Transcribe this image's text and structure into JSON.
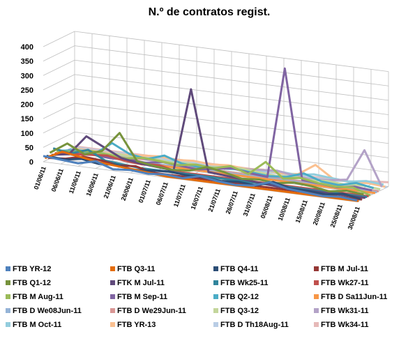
{
  "chart_data": {
    "type": "line3d",
    "title": "N.º de contratos regist.",
    "categories": [
      "01/06/11",
      "06/06/11",
      "11/06/11",
      "16/06/11",
      "21/06/11",
      "26/06/11",
      "01/07/11",
      "06/07/11",
      "11/07/11",
      "16/07/11",
      "21/07/11",
      "26/07/11",
      "31/07/11",
      "05/08/11",
      "10/08/11",
      "15/08/11",
      "20/08/11",
      "25/08/11",
      "30/08/11"
    ],
    "ylim": [
      0,
      400
    ],
    "yticks": [
      0,
      50,
      100,
      150,
      200,
      250,
      300,
      350,
      400
    ],
    "grid": true,
    "series": [
      {
        "name": "FTB YR-12",
        "color": "#4F81BD",
        "values": [
          20,
          15,
          10,
          25,
          5,
          10,
          5,
          10,
          5,
          20,
          10,
          5,
          10,
          30,
          15,
          10,
          5,
          10,
          5
        ]
      },
      {
        "name": "FTB Q3-11",
        "color": "#E46C0A",
        "values": [
          10,
          40,
          30,
          20,
          15,
          10,
          5,
          0,
          0,
          0,
          0,
          0,
          0,
          0,
          0,
          0,
          0,
          0,
          0
        ]
      },
      {
        "name": "FTB Q4-11",
        "color": "#2C4D75",
        "values": [
          15,
          10,
          20,
          10,
          15,
          5,
          10,
          15,
          10,
          10,
          5,
          10,
          5,
          25,
          10,
          10,
          5,
          15,
          5
        ]
      },
      {
        "name": "FTB M Jul-11",
        "color": "#953735",
        "values": [
          5,
          10,
          25,
          20,
          10,
          15,
          0,
          0,
          0,
          0,
          0,
          0,
          0,
          0,
          0,
          0,
          0,
          0,
          0
        ]
      },
      {
        "name": "FTB Q1-12",
        "color": "#77933C",
        "values": [
          20,
          60,
          30,
          50,
          120,
          30,
          20,
          15,
          20,
          40,
          30,
          15,
          20,
          15,
          25,
          20,
          10,
          20,
          15
        ]
      },
      {
        "name": "FTK M Jul-11",
        "color": "#604A7B",
        "values": [
          10,
          20,
          90,
          60,
          30,
          20,
          15,
          10,
          300,
          20,
          15,
          10,
          5,
          0,
          0,
          0,
          0,
          0,
          0
        ]
      },
      {
        "name": "FTB Wk25-11",
        "color": "#31859C",
        "values": [
          30,
          20,
          40,
          10,
          5,
          0,
          0,
          0,
          0,
          0,
          0,
          0,
          0,
          0,
          0,
          0,
          0,
          0,
          0
        ]
      },
      {
        "name": "FTB Wk27-11",
        "color": "#C0504D",
        "values": [
          10,
          15,
          20,
          25,
          15,
          10,
          15,
          0,
          0,
          0,
          0,
          0,
          0,
          0,
          0,
          0,
          0,
          0,
          0
        ]
      },
      {
        "name": "FTB M Aug-11",
        "color": "#9BBB59",
        "values": [
          15,
          20,
          30,
          25,
          20,
          30,
          25,
          20,
          30,
          25,
          40,
          20,
          70,
          20,
          30,
          20,
          15,
          20,
          0
        ]
      },
      {
        "name": "FTB M Sep-11",
        "color": "#8064A2",
        "values": [
          5,
          10,
          15,
          10,
          15,
          10,
          20,
          15,
          10,
          20,
          30,
          20,
          15,
          400,
          20,
          15,
          10,
          20,
          15
        ]
      },
      {
        "name": "FTB Q2-12",
        "color": "#4BACC6",
        "values": [
          10,
          20,
          15,
          60,
          30,
          20,
          40,
          20,
          15,
          20,
          25,
          20,
          15,
          20,
          40,
          20,
          15,
          30,
          20
        ]
      },
      {
        "name": "FTB D Sa11Jun-11",
        "color": "#F79646",
        "values": [
          0,
          5,
          10,
          5,
          0,
          0,
          0,
          0,
          0,
          0,
          0,
          0,
          0,
          0,
          0,
          0,
          0,
          0,
          0
        ]
      },
      {
        "name": "FTB D We08Jun-11",
        "color": "#95B3D7",
        "values": [
          0,
          5,
          10,
          0,
          0,
          0,
          0,
          0,
          0,
          0,
          0,
          0,
          0,
          0,
          0,
          0,
          0,
          0,
          0
        ]
      },
      {
        "name": "FTB D We29Jun-11",
        "color": "#D99694",
        "values": [
          0,
          0,
          0,
          0,
          5,
          10,
          5,
          0,
          0,
          0,
          0,
          0,
          0,
          0,
          0,
          0,
          0,
          0,
          0
        ]
      },
      {
        "name": "FTB Q3-12",
        "color": "#C3D69B",
        "values": [
          0,
          5,
          5,
          10,
          5,
          10,
          5,
          10,
          5,
          10,
          15,
          10,
          5,
          10,
          5,
          10,
          5,
          10,
          5
        ]
      },
      {
        "name": "FTB Wk31-11",
        "color": "#B3A2C7",
        "values": [
          0,
          0,
          0,
          0,
          0,
          0,
          0,
          0,
          0,
          5,
          10,
          15,
          20,
          10,
          5,
          10,
          20,
          130,
          10
        ]
      },
      {
        "name": "FTB M Oct-11",
        "color": "#93CDDD",
        "values": [
          0,
          0,
          0,
          0,
          0,
          0,
          0,
          0,
          0,
          0,
          5,
          10,
          15,
          10,
          20,
          15,
          10,
          20,
          15
        ]
      },
      {
        "name": "FTB YR-13",
        "color": "#FAC090",
        "values": [
          0,
          0,
          0,
          0,
          5,
          10,
          5,
          10,
          5,
          10,
          5,
          10,
          5,
          10,
          50,
          10,
          5,
          10,
          5
        ]
      },
      {
        "name": "FTB D Th18Aug-11",
        "color": "#B9CDE5",
        "values": [
          0,
          0,
          0,
          0,
          0,
          0,
          0,
          0,
          0,
          0,
          0,
          0,
          0,
          0,
          0,
          0,
          5,
          10,
          0
        ]
      },
      {
        "name": "FTB Wk34-11",
        "color": "#E6B9B8",
        "values": [
          0,
          0,
          0,
          0,
          0,
          0,
          0,
          0,
          0,
          0,
          0,
          0,
          0,
          0,
          0,
          0,
          0,
          10,
          15
        ]
      }
    ]
  }
}
